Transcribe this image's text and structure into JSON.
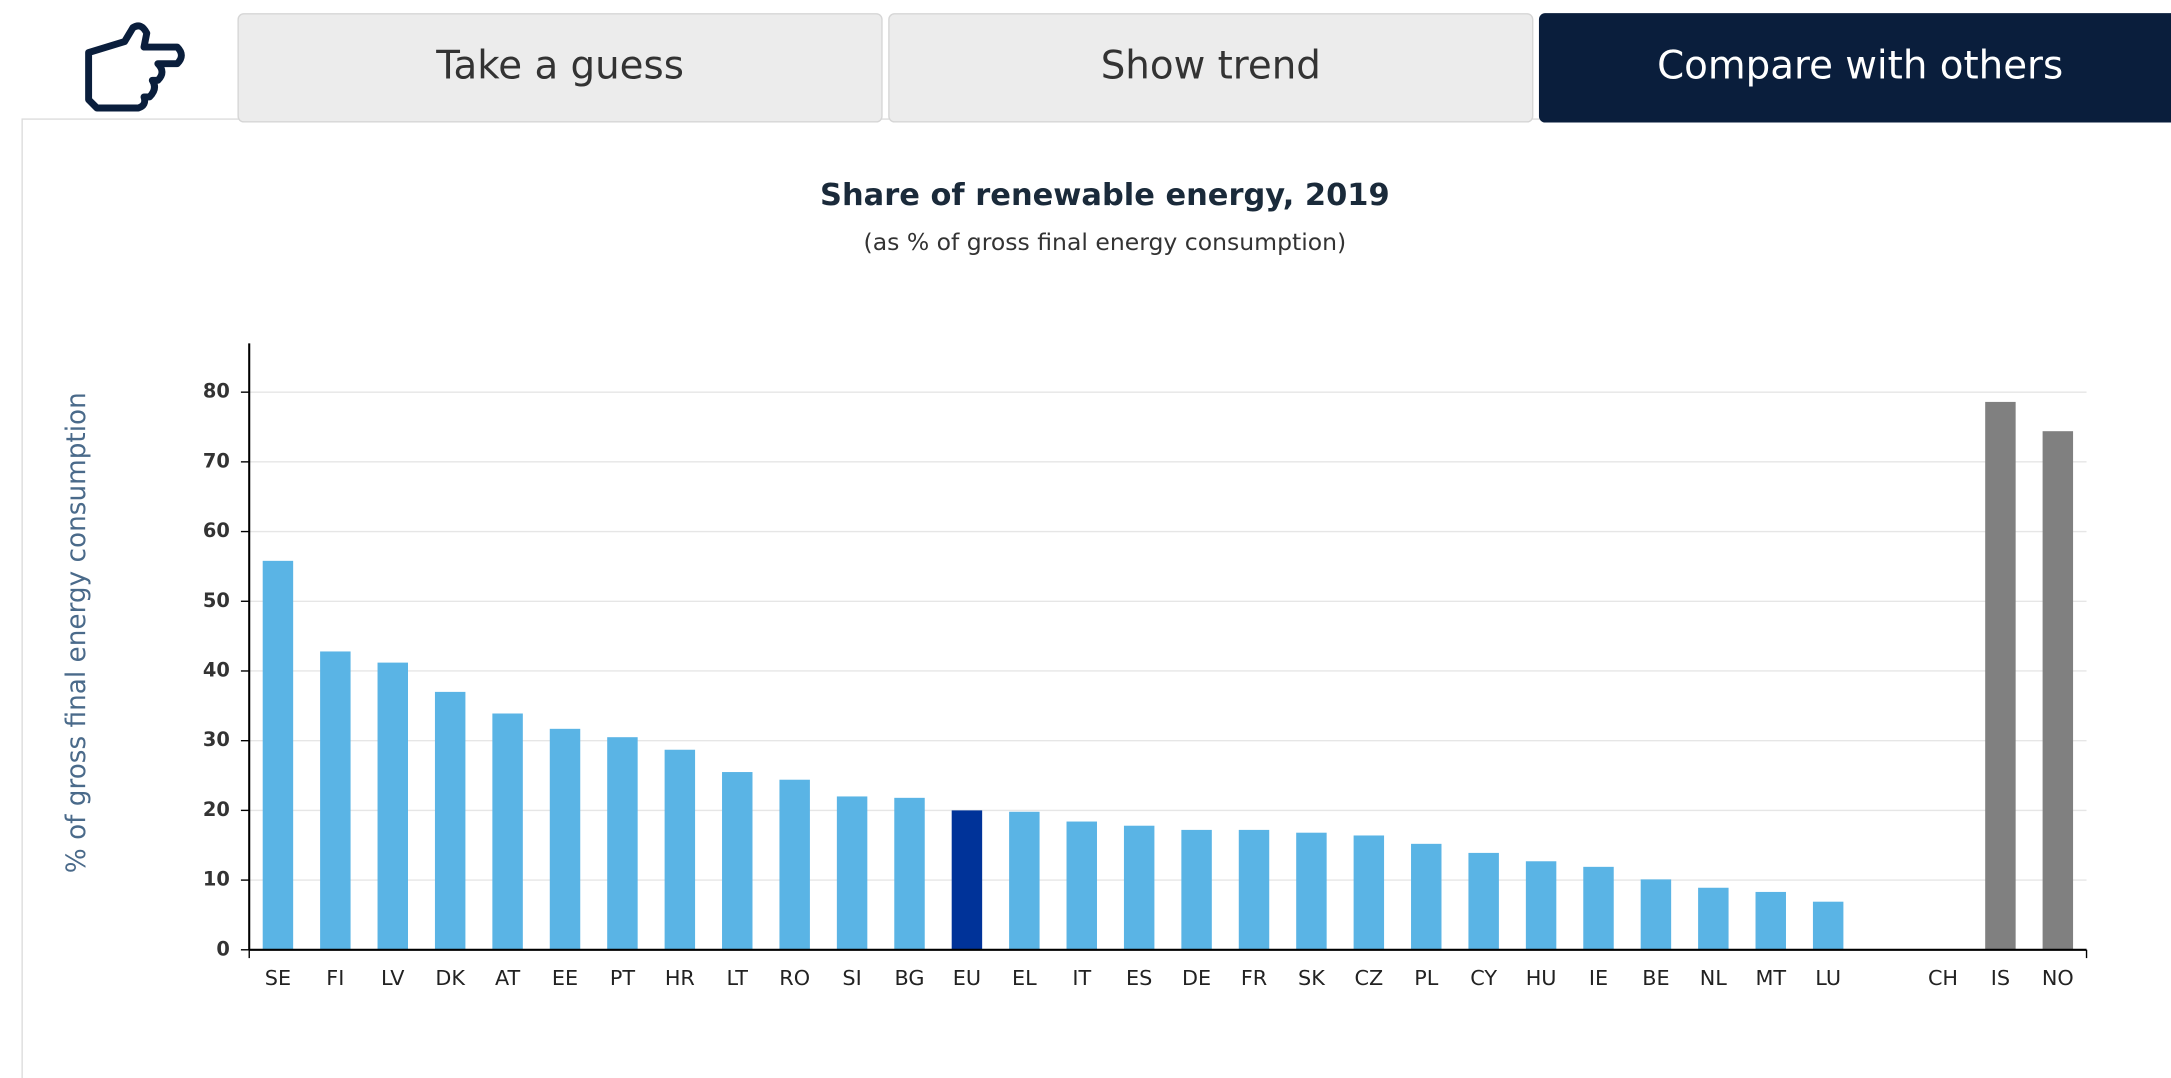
{
  "tabs": [
    "Take a guess",
    "Show trend",
    "Compare with others"
  ],
  "active_tab": 2,
  "chart_data": {
    "type": "bar",
    "title": "Share of renewable energy, 2019",
    "subtitle": "(as % of gross final energy consumption)",
    "y_label": "% of gross final energy consumption",
    "categories": [
      "SE",
      "FI",
      "LV",
      "DK",
      "AT",
      "EE",
      "PT",
      "HR",
      "LT",
      "RO",
      "SI",
      "BG",
      "EU",
      "EL",
      "IT",
      "ES",
      "DE",
      "FR",
      "SK",
      "CZ",
      "PL",
      "CY",
      "HU",
      "IE",
      "BE",
      "NL",
      "MT",
      "LU",
      null,
      "CH",
      "IS",
      "NO"
    ],
    "values": [
      55.8,
      42.8,
      41.2,
      37.0,
      33.9,
      31.7,
      30.5,
      28.7,
      25.5,
      24.4,
      22.0,
      21.8,
      20.0,
      19.8,
      18.4,
      17.8,
      17.2,
      17.2,
      16.8,
      16.4,
      15.2,
      13.9,
      12.7,
      11.9,
      10.1,
      8.9,
      8.3,
      6.9,
      null,
      null,
      78.6,
      74.4
    ],
    "colors": [
      "#5ab4e5",
      "#5ab4e5",
      "#5ab4e5",
      "#5ab4e5",
      "#5ab4e5",
      "#5ab4e5",
      "#5ab4e5",
      "#5ab4e5",
      "#5ab4e5",
      "#5ab4e5",
      "#5ab4e5",
      "#5ab4e5",
      "#003399",
      "#5ab4e5",
      "#5ab4e5",
      "#5ab4e5",
      "#5ab4e5",
      "#5ab4e5",
      "#5ab4e5",
      "#5ab4e5",
      "#5ab4e5",
      "#5ab4e5",
      "#5ab4e5",
      "#5ab4e5",
      "#5ab4e5",
      "#5ab4e5",
      "#5ab4e5",
      "#5ab4e5",
      null,
      "#808080",
      "#808080",
      "#808080"
    ],
    "ylim": [
      0,
      87
    ],
    "yticks": [
      0,
      10,
      20,
      30,
      40,
      50,
      60,
      70,
      80
    ],
    "grid": true
  }
}
